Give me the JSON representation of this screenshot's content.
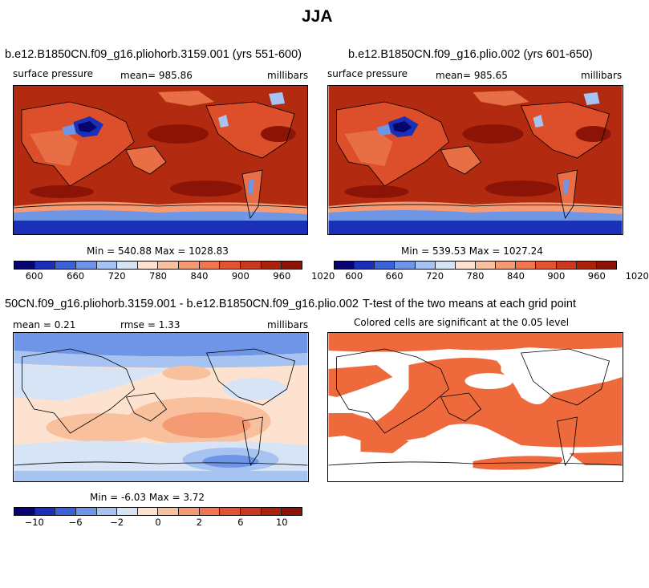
{
  "figure_title": "JJA",
  "panels": [
    {
      "title": "b.e12.B1850CN.f09_g16.pliohorb.3159.001 (yrs 551-600)",
      "variable": "surface pressure",
      "stat": "mean=  985.86",
      "units": "millibars",
      "minmax": "Min = 540.88 Max = 1028.83",
      "colorbar_ticks": [
        "600",
        "660",
        "720",
        "780",
        "840",
        "900",
        "960",
        "1020"
      ],
      "colorbar_colors": [
        "#06056d",
        "#1b30b8",
        "#3b63d6",
        "#6f95e6",
        "#a6c3f1",
        "#d7e4f6",
        "#fde3cf",
        "#f9c09e",
        "#f59b73",
        "#ef764d",
        "#e1542d",
        "#c9381c",
        "#a8220c",
        "#8c1406"
      ]
    },
    {
      "title": "b.e12.B1850CN.f09_g16.plio.002 (yrs 601-650)",
      "variable": "surface pressure",
      "stat": "mean=  985.65",
      "units": "millibars",
      "minmax": "Min = 539.53 Max = 1027.24",
      "colorbar_ticks": [
        "600",
        "660",
        "720",
        "780",
        "840",
        "900",
        "960",
        "1020"
      ],
      "colorbar_colors": [
        "#06056d",
        "#1b30b8",
        "#3b63d6",
        "#6f95e6",
        "#a6c3f1",
        "#d7e4f6",
        "#fde3cf",
        "#f9c09e",
        "#f59b73",
        "#ef764d",
        "#e1542d",
        "#c9381c",
        "#a8220c",
        "#8c1406"
      ]
    },
    {
      "title": "50CN.f09_g16.pliohorb.3159.001 - b.e12.B1850CN.f09_g16.plio.002",
      "stat_mean": "mean =    0.21",
      "stat_rmse": "rmse =    1.33",
      "units": "millibars",
      "minmax": "Min =  -6.03 Max =   3.72",
      "colorbar_ticks": [
        "−10",
        "−6",
        "−2",
        "0",
        "2",
        "6",
        "10"
      ],
      "colorbar_colors": [
        "#06056d",
        "#1b30b8",
        "#3b63d6",
        "#6f95e6",
        "#a6c3f1",
        "#d7e4f6",
        "#fde3cf",
        "#f9c09e",
        "#f59b73",
        "#ef764d",
        "#e1542d",
        "#c9381c",
        "#a8220c",
        "#8c1406"
      ]
    },
    {
      "title": "T-test of the two means at each grid point",
      "subtitle": "Colored cells are significant at the 0.05 level",
      "fill_color": "#ee6a3c"
    }
  ]
}
